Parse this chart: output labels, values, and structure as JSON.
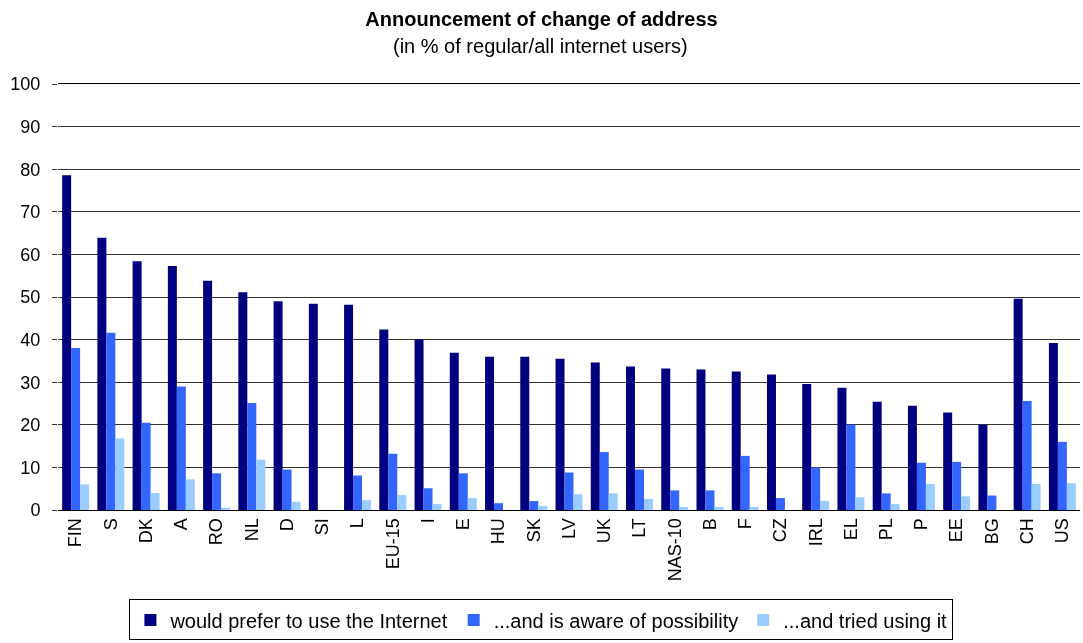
{
  "chart_data": {
    "type": "bar",
    "title": "Announcement of change of address",
    "subtitle": "(in % of regular/all internet users)",
    "categories": [
      "FIN",
      "S",
      "DK",
      "A",
      "RO",
      "NL",
      "D",
      "SI",
      "L",
      "EU-15",
      "I",
      "E",
      "HU",
      "SK",
      "LV",
      "UK",
      "LT",
      "NAS-10",
      "B",
      "F",
      "CZ",
      "IRL",
      "EL",
      "PL",
      "P",
      "EE",
      "BG",
      "CH",
      "US"
    ],
    "series": [
      {
        "name": "would prefer to use the Internet",
        "color": "#000080",
        "values": [
          78.6,
          63.9,
          58.4,
          57.3,
          53.8,
          51.1,
          49.0,
          48.4,
          48.2,
          42.4,
          40.0,
          36.9,
          36.0,
          36.0,
          35.5,
          34.6,
          33.7,
          33.2,
          33.0,
          32.5,
          31.8,
          29.6,
          28.7,
          25.4,
          24.5,
          22.9,
          20.0,
          49.6,
          39.2
        ]
      },
      {
        "name": "...and is aware of possibility",
        "color": "#3366ff",
        "values": [
          38.0,
          41.6,
          20.5,
          29.0,
          8.6,
          25.1,
          9.5,
          null,
          8.1,
          13.2,
          5.1,
          8.6,
          1.6,
          2.1,
          8.8,
          13.6,
          9.5,
          4.6,
          4.6,
          12.7,
          2.8,
          10.0,
          20.0,
          3.9,
          11.1,
          11.3,
          3.4,
          25.6,
          16.0
        ]
      },
      {
        "name": "...and tried using it",
        "color": "#99ccff",
        "values": [
          6.0,
          16.8,
          4.0,
          7.2,
          0.5,
          11.8,
          1.9,
          null,
          2.3,
          3.5,
          1.4,
          2.8,
          null,
          1.0,
          3.7,
          3.9,
          2.6,
          0.7,
          0.7,
          0.7,
          null,
          2.1,
          3.0,
          1.4,
          6.1,
          3.2,
          null,
          6.1,
          6.3
        ]
      }
    ],
    "ylim": [
      0,
      100
    ],
    "yticks": [
      0,
      10,
      20,
      30,
      40,
      50,
      60,
      70,
      80,
      90,
      100
    ],
    "grid": "y",
    "legend": "bottom"
  }
}
